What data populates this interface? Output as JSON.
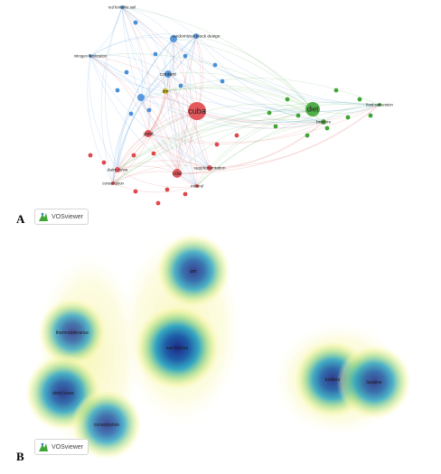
{
  "panels": [
    {
      "letter": "A",
      "logo_text": "VOSviewer"
    },
    {
      "letter": "B",
      "logo_text": "VOSviewer"
    }
  ],
  "network": {
    "cluster_colors": {
      "red": "#e0474c",
      "blue": "#4a90d9",
      "green": "#3fa535",
      "yellow": "#c8b400"
    },
    "nodes": [
      {
        "id": "cuba",
        "label": "cuba",
        "cluster": "red",
        "size": 10
      },
      {
        "id": "diet",
        "label": "diet",
        "cluster": "green",
        "size": 8
      },
      {
        "id": "cow",
        "label": "cow",
        "cluster": "red",
        "size": 5
      },
      {
        "id": "yield",
        "label": "yield",
        "cluster": "red",
        "size": 4
      },
      {
        "id": "content",
        "label": "content",
        "cluster": "blue",
        "size": 4
      },
      {
        "id": "pm1",
        "label": "",
        "cluster": "blue",
        "size": 4
      },
      {
        "id": "pm2",
        "label": "",
        "cluster": "blue",
        "size": 4
      },
      {
        "id": "randomized",
        "label": "randomized block design",
        "cluster": "blue",
        "size": 3
      },
      {
        "id": "nitrogen",
        "label": "nitrogen fertilization",
        "cluster": "blue",
        "size": 2
      },
      {
        "id": "redferr",
        "label": "red ferrallitic soil",
        "cluster": "blue",
        "size": 2
      },
      {
        "id": "supplementation",
        "label": "supplementation",
        "cluster": "red",
        "size": 3
      },
      {
        "id": "feedconv",
        "label": "feed conversion",
        "cluster": "green",
        "size": 2
      },
      {
        "id": "broilers",
        "label": "broilers",
        "cluster": "green",
        "size": 3
      },
      {
        "id": "dairycows",
        "label": "dairy cows",
        "cluster": "red",
        "size": 3
      },
      {
        "id": "consumption",
        "label": "consumption",
        "cluster": "red",
        "size": 2
      },
      {
        "id": "mineral",
        "label": "mineral",
        "cluster": "red",
        "size": 2
      },
      {
        "id": "dm",
        "label": "dm",
        "cluster": "yellow",
        "size": 3
      }
    ]
  },
  "density": {
    "blobs": [
      {
        "label": "pm",
        "value": 0.7
      },
      {
        "label": "saccharina",
        "value": 1.0
      },
      {
        "label": "thermotolerance",
        "value": 0.55
      },
      {
        "label": "dairy cows",
        "value": 0.75
      },
      {
        "label": "consumption",
        "value": 0.6
      },
      {
        "label": "broilers",
        "value": 0.8
      },
      {
        "label": "laxative",
        "value": 0.7
      }
    ]
  }
}
